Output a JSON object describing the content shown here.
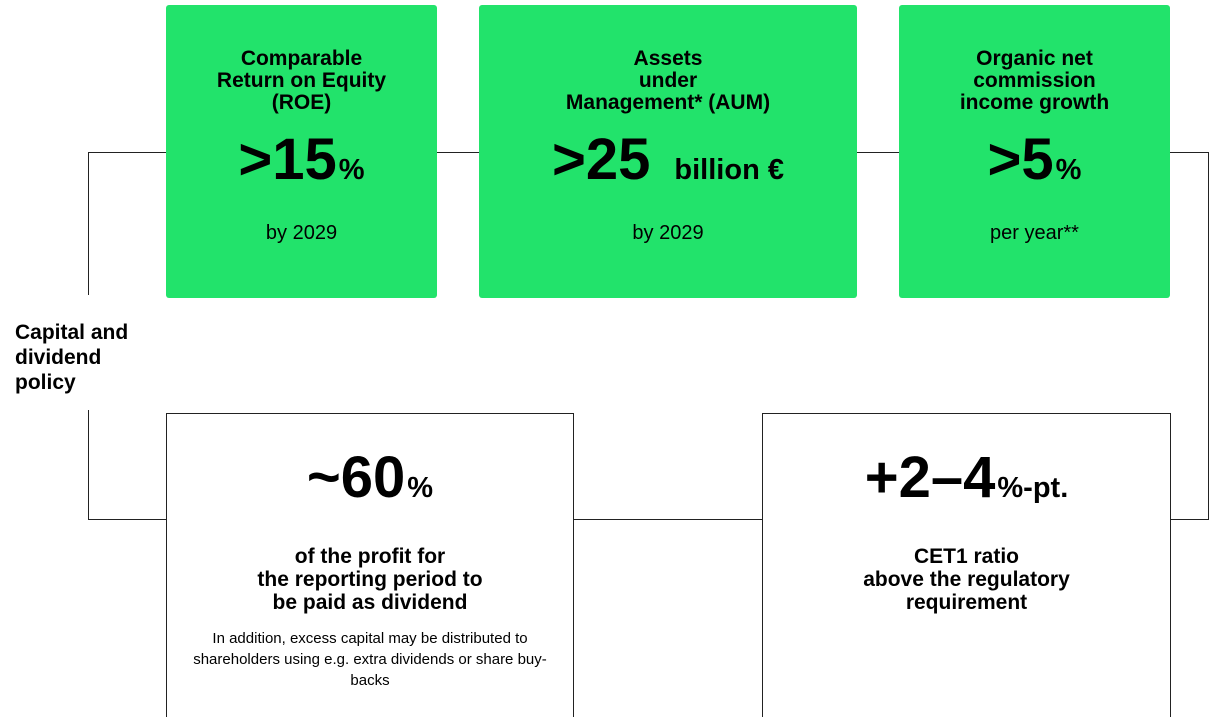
{
  "side_label": [
    "Capital and",
    "dividend",
    "policy"
  ],
  "targets": [
    {
      "title": [
        "Comparable",
        "Return on Equity",
        "(ROE)"
      ],
      "value": ">15",
      "unit": "%",
      "note": "by 2029"
    },
    {
      "title": [
        "Assets",
        "under",
        "Management* (AUM)"
      ],
      "value": ">25",
      "unit": "billion €",
      "note": "by 2029"
    },
    {
      "title": [
        "Organic net",
        "commission",
        "income growth"
      ],
      "value": ">5",
      "unit": "%",
      "note": "per year**"
    }
  ],
  "policies": [
    {
      "value": "~60",
      "unit": "%",
      "description": [
        "of the profit for",
        "the reporting period to",
        "be paid as dividend"
      ],
      "detail": "In addition, excess capital may be distributed to shareholders using e.g. extra dividends or share buy-backs"
    },
    {
      "value": "+2–4",
      "unit": "%-pt.",
      "description": [
        "CET1 ratio",
        "above the regulatory",
        "requirement"
      ]
    }
  ]
}
